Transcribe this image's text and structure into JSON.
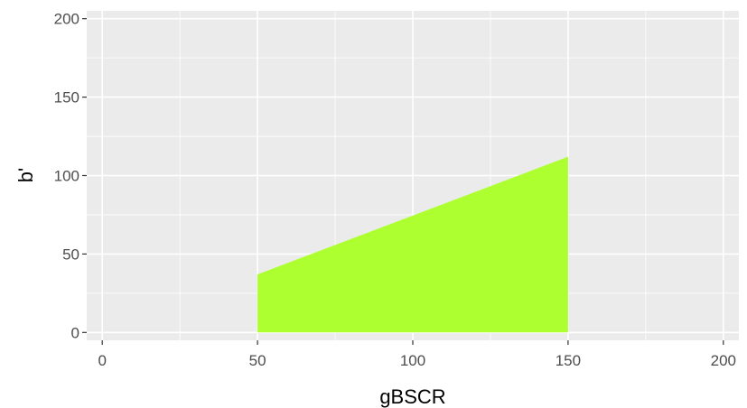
{
  "chart_data": {
    "type": "area",
    "xlabel": "gBSCR",
    "ylabel": "b'",
    "xlim": [
      -5,
      205
    ],
    "ylim": [
      -5,
      205
    ],
    "x_ticks": [
      0,
      50,
      100,
      150,
      200
    ],
    "y_ticks": [
      0,
      50,
      100,
      150,
      200
    ],
    "x_tick_labels": [
      "0",
      "50",
      "100",
      "150",
      "200"
    ],
    "y_tick_labels": [
      "0",
      "50",
      "100",
      "150",
      "200"
    ],
    "series": [
      {
        "x": [
          50,
          150
        ],
        "ymin": [
          0,
          0
        ],
        "ymax": [
          37,
          112
        ],
        "color": "#adff2f"
      }
    ],
    "panel_background": "#ebebeb",
    "grid_color": "#ffffff",
    "grid": true
  }
}
